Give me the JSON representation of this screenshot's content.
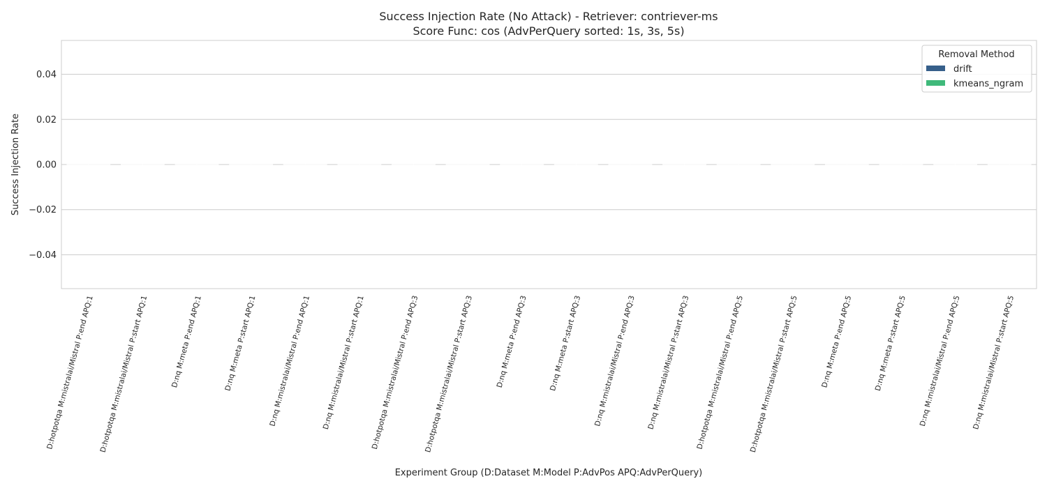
{
  "chart_data": {
    "type": "bar",
    "title": "Success Injection Rate (No Attack) - Retriever: contriever-ms",
    "subtitle": "Score Func: cos (AdvPerQuery sorted: 1s, 3s, 5s)",
    "xlabel": "Experiment Group (D:Dataset M:Model P:AdvPos APQ:AdvPerQuery)",
    "ylabel": "Success Injection Rate",
    "ylim": [
      -0.055,
      0.055
    ],
    "yticks": [
      -0.04,
      -0.02,
      0.0,
      0.02,
      0.04
    ],
    "ytick_labels": [
      "−0.04",
      "−0.02",
      "0.00",
      "0.02",
      "0.04"
    ],
    "grid": true,
    "categories": [
      "D:hotpotqa M:mistralai/Mistral P:end APQ:1",
      "D:hotpotqa M:mistralai/Mistral P:start APQ:1",
      "D:nq M:meta P:end APQ:1",
      "D:nq M:meta P:start APQ:1",
      "D:nq M:mistralai/Mistral P:end APQ:1",
      "D:nq M:mistralai/Mistral P:start APQ:1",
      "D:hotpotqa M:mistralai/Mistral P:end APQ:3",
      "D:hotpotqa M:mistralai/Mistral P:start APQ:3",
      "D:nq M:meta P:end APQ:3",
      "D:nq M:meta P:start APQ:3",
      "D:nq M:mistralai/Mistral P:end APQ:3",
      "D:nq M:mistralai/Mistral P:start APQ:3",
      "D:hotpotqa M:mistralai/Mistral P:end APQ:5",
      "D:hotpotqa M:mistralai/Mistral P:start APQ:5",
      "D:nq M:meta P:end APQ:5",
      "D:nq M:meta P:start APQ:5",
      "D:nq M:mistralai/Mistral P:end APQ:5",
      "D:nq M:mistralai/Mistral P:start APQ:5"
    ],
    "series": [
      {
        "name": "drift",
        "color": "#365f8a",
        "values": [
          0,
          0,
          0,
          0,
          0,
          0,
          0,
          0,
          0,
          0,
          0,
          0,
          0,
          0,
          0,
          0,
          0,
          0
        ]
      },
      {
        "name": "kmeans_ngram",
        "color": "#3fb97a",
        "values": [
          0,
          0,
          0,
          0,
          0,
          0,
          0,
          0,
          0,
          0,
          0,
          0,
          0,
          0,
          0,
          0,
          0,
          0
        ]
      }
    ],
    "legend": {
      "title": "Removal Method",
      "position": "top-right"
    }
  }
}
